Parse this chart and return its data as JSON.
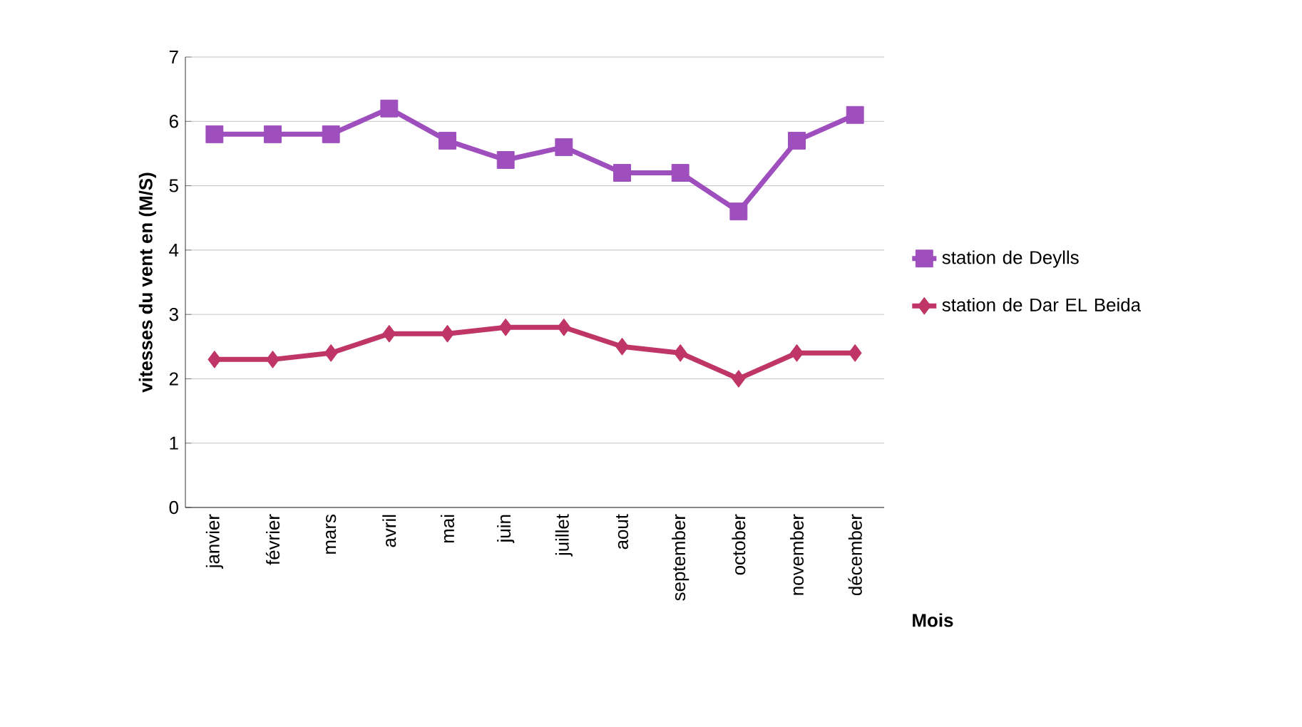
{
  "chart_data": {
    "type": "line",
    "xlabel": "Mois",
    "ylabel": "vitesses du  vent en (M/S)",
    "categories": [
      "janvier",
      "février",
      "mars",
      "avril",
      "mai",
      "juin",
      "juillet",
      "aout",
      "september",
      "october",
      "november",
      "décember"
    ],
    "series": [
      {
        "name": "station de Deylls",
        "color": "#9e4fbd",
        "marker": "square",
        "values": [
          5.8,
          5.8,
          5.8,
          6.2,
          5.7,
          5.4,
          5.6,
          5.2,
          5.2,
          4.6,
          5.7,
          6.1
        ]
      },
      {
        "name": "station de Dar EL Beida",
        "color": "#bf3566",
        "marker": "diamond",
        "values": [
          2.3,
          2.3,
          2.4,
          2.7,
          2.7,
          2.8,
          2.8,
          2.5,
          2.4,
          2.0,
          2.4,
          2.4
        ]
      }
    ],
    "ylim": [
      0,
      7
    ],
    "yticks": [
      0,
      1,
      2,
      3,
      4,
      5,
      6,
      7
    ],
    "grid": "y",
    "legend": "right",
    "line_style": "solid"
  }
}
